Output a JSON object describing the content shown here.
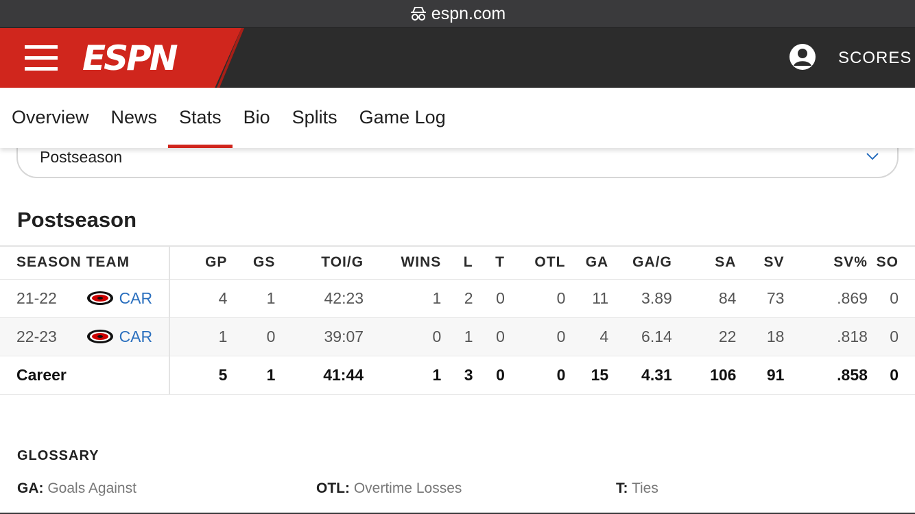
{
  "browser": {
    "url": "espn.com"
  },
  "header": {
    "logo": "ESPN",
    "scores_label": "SCORES"
  },
  "tabs": [
    {
      "label": "Overview"
    },
    {
      "label": "News"
    },
    {
      "label": "Stats",
      "active": true
    },
    {
      "label": "Bio"
    },
    {
      "label": "Splits"
    },
    {
      "label": "Game Log"
    }
  ],
  "dropdown": {
    "selected": "Postseason"
  },
  "section_title": "Postseason",
  "table": {
    "headers": [
      "SEASON",
      "TEAM",
      "GP",
      "GS",
      "TOI/G",
      "WINS",
      "L",
      "T",
      "OTL",
      "GA",
      "GA/G",
      "SA",
      "SV",
      "SV%",
      "SO"
    ],
    "rows": [
      {
        "season": "21-22",
        "team": "CAR",
        "stats": [
          "4",
          "1",
          "42:23",
          "1",
          "2",
          "0",
          "0",
          "11",
          "3.89",
          "84",
          "73",
          ".869",
          "0"
        ]
      },
      {
        "season": "22-23",
        "team": "CAR",
        "stats": [
          "1",
          "0",
          "39:07",
          "0",
          "1",
          "0",
          "0",
          "4",
          "6.14",
          "22",
          "18",
          ".818",
          "0"
        ]
      }
    ],
    "career": {
      "label": "Career",
      "stats": [
        "5",
        "1",
        "41:44",
        "1",
        "3",
        "0",
        "0",
        "15",
        "4.31",
        "106",
        "91",
        ".858",
        "0"
      ]
    }
  },
  "glossary": {
    "title": "GLOSSARY",
    "items": [
      {
        "abbr": "GA:",
        "desc": "Goals Against"
      },
      {
        "abbr": "OTL:",
        "desc": "Overtime Losses"
      },
      {
        "abbr": "T:",
        "desc": "Ties"
      }
    ]
  },
  "colors": {
    "espn_red": "#d0261d",
    "header_dark": "#2c2c2c",
    "link_blue": "#2a6fbe"
  }
}
